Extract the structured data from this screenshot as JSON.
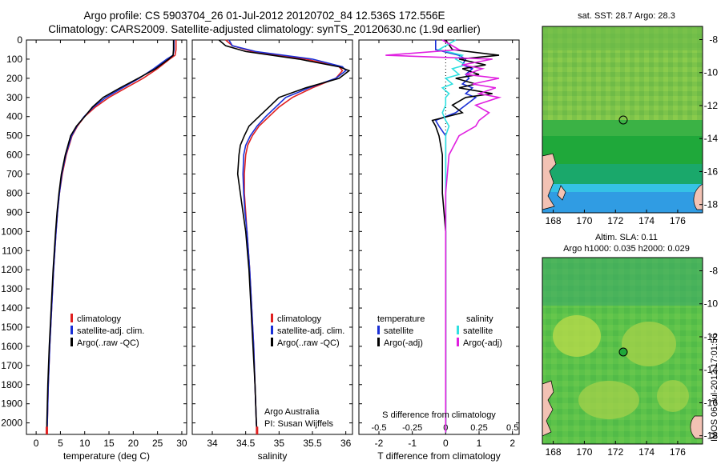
{
  "header": {
    "title_line1": "Argo profile: CS 5903704_26 01-Jul-2012 20120702_84 12.536S 172.556E",
    "title_line2": "Climatology: CARS2009. Satellite-adjusted climatology: synTS_20120630.nc (1.9d earlier)"
  },
  "map_panels": {
    "top_title": "sat. SST: 28.7 Argo: 28.3",
    "bottom_title_line1": "Altim. SLA: 0.11",
    "bottom_title_line2": "Argo h1000: 0.035 h2000: 0.029",
    "x_ticks": [
      "168",
      "170",
      "172",
      "174",
      "176"
    ],
    "top_y_ticks": [
      "-8",
      "-10",
      "-12",
      "-14",
      "-16",
      "-18"
    ],
    "bottom_y_ticks": [
      "-8",
      "-10",
      "-12",
      "-14",
      "-16",
      "-18"
    ],
    "top_colors": {
      "main": "#7cc34a",
      "band": "#1fa83a",
      "deep": "#35c2e6",
      "land": "#f2c2b4"
    },
    "bottom_colors": {
      "main": "#5cc24a",
      "light": "#b7d94a",
      "top": "#3aa86a",
      "land": "#f2c2b4"
    }
  },
  "footer": {
    "credit": "Argo Australia",
    "pi": "PI: Susan Wijffels",
    "imos_stamp": "IMOS 06-Jul-2012 17:01:56"
  },
  "colors": {
    "climatology": "#e02020",
    "satellite": "#1a2fd6",
    "argo": "#000000",
    "sal_satellite": "#30e0e0",
    "sal_argo": "#e020e0"
  },
  "chart_data": [
    {
      "type": "line",
      "xlabel": "temperature (deg C)",
      "ylabel": "",
      "xlim": [
        -2,
        31
      ],
      "ylim": [
        2060,
        0
      ],
      "x_ticks": [
        "0",
        "5",
        "10",
        "15",
        "20",
        "25",
        "30"
      ],
      "x_tick_values": [
        0,
        5,
        10,
        15,
        20,
        25,
        30
      ],
      "y_ticks": [
        "0",
        "100",
        "200",
        "300",
        "400",
        "500",
        "600",
        "700",
        "800",
        "900",
        "1000",
        "1100",
        "1200",
        "1300",
        "1400",
        "1500",
        "1600",
        "1700",
        "1800",
        "1900",
        "2000"
      ],
      "legend": [
        "climatology",
        "satellite-adj. clim.",
        "Argo(..raw -QC)"
      ],
      "depth": [
        0,
        50,
        80,
        100,
        150,
        200,
        250,
        300,
        350,
        400,
        450,
        500,
        600,
        700,
        800,
        900,
        1000,
        1200,
        1400,
        1600,
        1800,
        2000,
        2050
      ],
      "series": [
        {
          "name": "climatology",
          "values": [
            28.8,
            28.8,
            28.6,
            27.5,
            25.0,
            22.0,
            18.5,
            15.0,
            12.2,
            10.0,
            8.5,
            7.4,
            6.2,
            5.4,
            4.8,
            4.4,
            4.1,
            3.6,
            3.2,
            2.8,
            2.5,
            2.3,
            2.2
          ]
        },
        {
          "name": "satellite-adj. clim.",
          "values": [
            28.4,
            28.4,
            28.2,
            26.9,
            24.2,
            21.2,
            17.8,
            14.4,
            11.8,
            9.9,
            8.4,
            7.3,
            6.1,
            5.3,
            4.8,
            4.4,
            4.1,
            3.6,
            3.2,
            2.8,
            2.5,
            2.3,
            2.2
          ]
        },
        {
          "name": "Argo(..raw -QC)",
          "values": [
            28.3,
            28.3,
            28.2,
            27.3,
            24.6,
            21.0,
            17.3,
            13.8,
            11.6,
            10.0,
            8.3,
            7.1,
            6.0,
            5.2,
            4.7,
            4.3,
            4.0,
            3.5,
            3.1,
            2.7,
            2.4,
            2.2,
            2.2
          ]
        }
      ]
    },
    {
      "type": "line",
      "xlabel": "salinity",
      "ylabel": "",
      "xlim": [
        33.7,
        36.1
      ],
      "ylim": [
        2060,
        0
      ],
      "x_ticks": [
        "34",
        "34.5",
        "35",
        "35.5",
        "36"
      ],
      "x_tick_values": [
        34,
        34.5,
        35,
        35.5,
        36
      ],
      "legend": [
        "climatology",
        "satellite-adj. clim.",
        "Argo(..raw -QC)"
      ],
      "depth": [
        0,
        30,
        60,
        100,
        140,
        160,
        200,
        250,
        300,
        350,
        400,
        450,
        500,
        550,
        600,
        700,
        800,
        900,
        1000,
        1200,
        1400,
        1600,
        1800,
        2000,
        2050
      ],
      "series": [
        {
          "name": "climatology",
          "values": [
            34.2,
            34.3,
            34.6,
            35.4,
            35.9,
            35.95,
            35.85,
            35.5,
            35.2,
            35.0,
            34.85,
            34.7,
            34.6,
            34.53,
            34.5,
            34.48,
            34.48,
            34.5,
            34.52,
            34.56,
            34.59,
            34.62,
            34.64,
            34.66,
            34.67
          ]
        },
        {
          "name": "satellite-adj. clim.",
          "values": [
            34.25,
            34.3,
            34.65,
            35.5,
            35.95,
            36.0,
            35.85,
            35.45,
            35.1,
            34.95,
            34.8,
            34.67,
            34.57,
            34.5,
            34.47,
            34.46,
            34.47,
            34.49,
            34.52,
            34.56,
            34.59,
            34.62,
            34.64,
            34.66,
            34.67
          ]
        },
        {
          "name": "Argo(..raw -QC)",
          "values": [
            34.1,
            34.2,
            34.5,
            35.3,
            35.9,
            36.05,
            35.9,
            35.4,
            35.0,
            34.85,
            34.7,
            34.55,
            34.48,
            34.42,
            34.4,
            34.38,
            34.42,
            34.46,
            34.5,
            34.55,
            34.58,
            34.61,
            34.64,
            34.66,
            34.67
          ]
        }
      ]
    },
    {
      "type": "line",
      "xlabel": "T difference from climatology",
      "xlabel_top": "S difference from climatology",
      "ylabel": "",
      "xlim": [
        -2.6,
        2.2
      ],
      "ylim": [
        2060,
        0
      ],
      "x_ticks": [
        "-2",
        "-1",
        "0",
        "1",
        "2"
      ],
      "x_tick_values": [
        -2,
        -1,
        0,
        1,
        2
      ],
      "s_ticks": [
        "-0.5",
        "-0.25",
        "0",
        "0.25",
        "0.5"
      ],
      "s_tick_positions": [
        -2,
        -1,
        0,
        1,
        2
      ],
      "legend_left_title": "temperature",
      "legend_right_title": "salinity",
      "legend_left": [
        "satellite",
        "Argo(-adj)"
      ],
      "legend_right": [
        "satellite",
        "Argo(-adj)"
      ],
      "depth": [
        0,
        50,
        80,
        100,
        130,
        150,
        180,
        200,
        230,
        250,
        280,
        300,
        340,
        380,
        420,
        450,
        500,
        600,
        800,
        1000,
        1400,
        1800,
        2050
      ],
      "series": [
        {
          "name": "T satellite",
          "values": [
            -0.3,
            -0.3,
            0.4,
            0.6,
            0.5,
            0.8,
            0.6,
            0.7,
            0.5,
            0.8,
            0.6,
            0.9,
            0.6,
            0.3,
            -0.3,
            -0.2,
            0.0,
            0.0,
            0.0,
            0.0,
            0.0,
            0.0,
            0.0
          ]
        },
        {
          "name": "T Argo(-adj)",
          "values": [
            0.0,
            0.2,
            1.6,
            0.4,
            1.2,
            0.5,
            1.0,
            0.3,
            0.9,
            0.4,
            1.4,
            0.6,
            0.2,
            0.5,
            -0.4,
            -0.3,
            -0.2,
            -0.1,
            -0.1,
            0.0,
            0.0,
            0.0,
            0.0
          ]
        },
        {
          "name": "S satellite",
          "values": [
            0.3,
            -0.2,
            0.5,
            0.3,
            0.6,
            0.2,
            0.4,
            0.0,
            0.2,
            -0.1,
            0.1,
            0.0,
            0.0,
            -0.1,
            0.0,
            0.1,
            0.0,
            0.0,
            0.0,
            0.0,
            0.0,
            0.0,
            0.0
          ]
        },
        {
          "name": "S Argo(-adj)",
          "values": [
            -0.1,
            0.4,
            -1.8,
            1.4,
            0.5,
            1.1,
            0.6,
            1.6,
            0.8,
            1.5,
            1.0,
            1.6,
            0.9,
            1.3,
            1.0,
            0.9,
            0.4,
            0.1,
            0.0,
            0.0,
            0.0,
            0.0,
            0.0
          ]
        }
      ]
    }
  ]
}
